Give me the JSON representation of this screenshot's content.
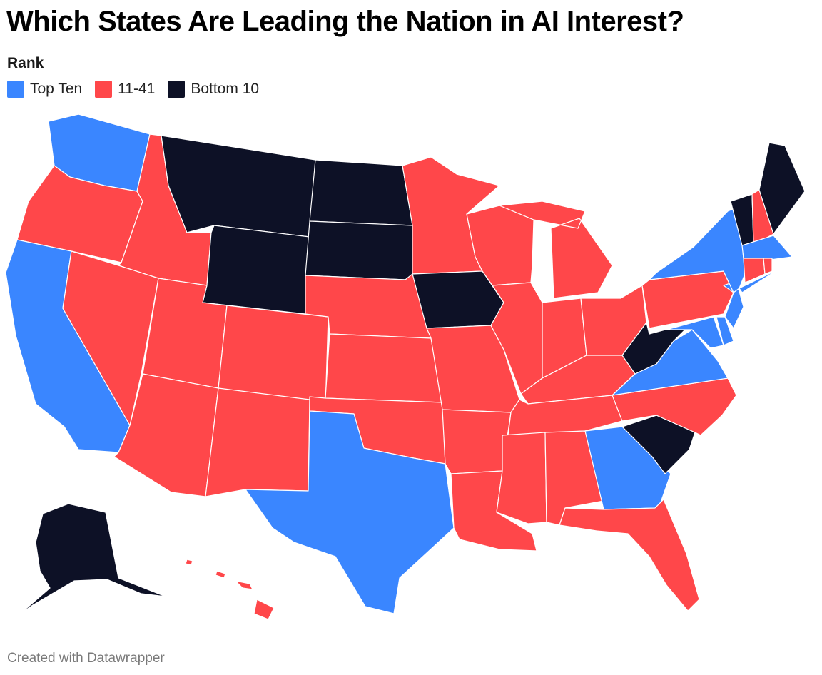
{
  "title": "Which States Are Leading the Nation in AI Interest?",
  "legend": {
    "title": "Rank",
    "items": [
      {
        "key": "top",
        "label": "Top Ten",
        "color": "#3a86ff"
      },
      {
        "key": "mid",
        "label": "11-41",
        "color": "#ff474a"
      },
      {
        "key": "bottom",
        "label": "Bottom 10",
        "color": "#0d1126"
      }
    ]
  },
  "footer": "Created with Datawrapper",
  "chart_data": {
    "type": "choropleth",
    "categories": [
      "Top Ten",
      "11-41",
      "Bottom 10"
    ],
    "states": {
      "WA": "top",
      "CA": "top",
      "TX": "top",
      "GA": "top",
      "VA": "top",
      "MD": "top",
      "DE": "top",
      "NJ": "top",
      "NY": "top",
      "MA": "top",
      "OR": "mid",
      "ID": "mid",
      "NV": "mid",
      "UT": "mid",
      "AZ": "mid",
      "CO": "mid",
      "NM": "mid",
      "NE": "mid",
      "KS": "mid",
      "OK": "mid",
      "MN": "mid",
      "WI": "mid",
      "MO": "mid",
      "AR": "mid",
      "LA": "mid",
      "IL": "mid",
      "MI": "mid",
      "IN": "mid",
      "OH": "mid",
      "KY": "mid",
      "TN": "mid",
      "MS": "mid",
      "AL": "mid",
      "FL": "mid",
      "NC": "mid",
      "PA": "mid",
      "NH": "mid",
      "CT": "mid",
      "RI": "mid",
      "HI": "mid",
      "DC": "mid",
      "MT": "bottom",
      "ND": "bottom",
      "SD": "bottom",
      "WY": "bottom",
      "IA": "bottom",
      "WV": "bottom",
      "SC": "bottom",
      "ME": "bottom",
      "VT": "bottom",
      "AK": "bottom"
    }
  }
}
